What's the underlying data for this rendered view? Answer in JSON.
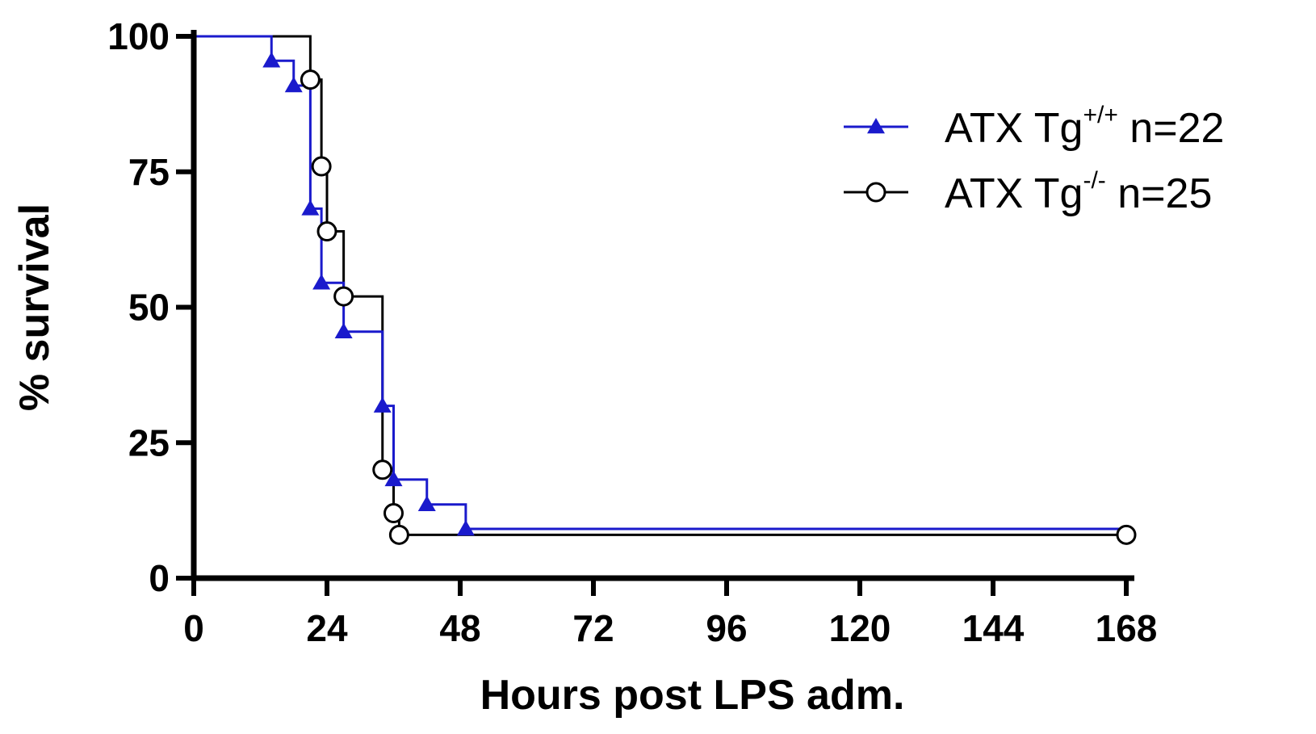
{
  "chart_data": {
    "type": "line",
    "subtype": "kaplan-meier step survival",
    "xlabel": "Hours post LPS adm.",
    "ylabel": "% survival",
    "xlim": [
      0,
      168
    ],
    "ylim": [
      0,
      100
    ],
    "xticks": [
      "0",
      "24",
      "48",
      "72",
      "96",
      "120",
      "144",
      "168"
    ],
    "yticks": [
      "0",
      "25",
      "50",
      "75",
      "100"
    ],
    "grid": false,
    "legend_position": "top-right",
    "series": [
      {
        "legend_main": "ATX Tg",
        "legend_sup": "+/+",
        "legend_suffix": " n=22",
        "color": "#1a1acc",
        "marker": "filled-triangle",
        "steps": [
          [
            0,
            100
          ],
          [
            14,
            95.5
          ],
          [
            18,
            90.9
          ],
          [
            21,
            68.2
          ],
          [
            23,
            54.5
          ],
          [
            27,
            45.5
          ],
          [
            34,
            31.8
          ],
          [
            36,
            18.2
          ],
          [
            42,
            13.6
          ],
          [
            49,
            9.1
          ],
          [
            168,
            9.1
          ]
        ],
        "markers": [
          [
            14,
            95.5
          ],
          [
            18,
            90.9
          ],
          [
            21,
            68.2
          ],
          [
            23,
            54.5
          ],
          [
            27,
            45.5
          ],
          [
            34,
            31.8
          ],
          [
            36,
            18.2
          ],
          [
            42,
            13.6
          ],
          [
            49,
            9.1
          ]
        ]
      },
      {
        "legend_main": "ATX Tg",
        "legend_sup": "-/-",
        "legend_suffix": " n=25",
        "color": "#000000",
        "marker": "open-circle",
        "steps": [
          [
            0,
            100
          ],
          [
            21,
            92
          ],
          [
            23,
            76
          ],
          [
            24,
            64
          ],
          [
            27,
            52
          ],
          [
            34,
            20
          ],
          [
            36,
            12
          ],
          [
            37,
            8
          ],
          [
            168,
            8
          ]
        ],
        "markers": [
          [
            21,
            92
          ],
          [
            23,
            76
          ],
          [
            24,
            64
          ],
          [
            27,
            52
          ],
          [
            34,
            20
          ],
          [
            36,
            12
          ],
          [
            37,
            8
          ],
          [
            168,
            8
          ]
        ]
      }
    ]
  }
}
